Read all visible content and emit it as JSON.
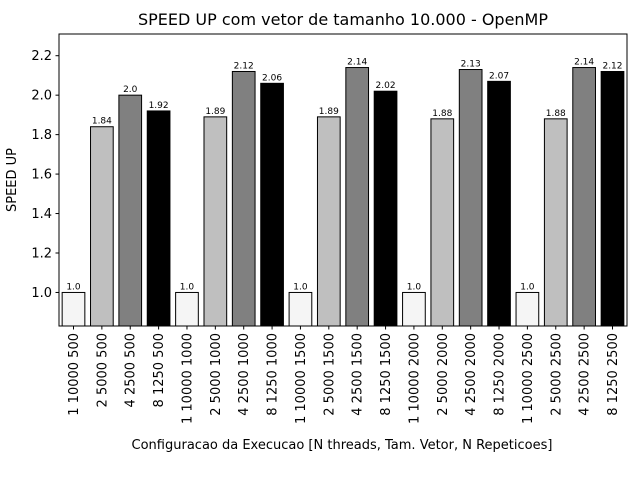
{
  "chart_data": {
    "type": "bar",
    "title": "SPEED UP com vetor de tamanho 10.000 - OpenMP",
    "xlabel": "Configuracao da Execucao [N threads, Tam. Vetor, N Repeticoes]",
    "ylabel": "SPEED UP",
    "ylim": [
      0.83,
      2.31
    ],
    "yticks": [
      "1.0",
      "1.2",
      "1.4",
      "1.6",
      "1.8",
      "2.0",
      "2.2"
    ],
    "grid": false,
    "legend": "none",
    "categories": [
      "1 10000 500",
      "2 5000 500",
      "4 2500 500",
      "8 1250 500",
      "1 10000 1000",
      "2 5000 1000",
      "4 2500 1000",
      "8 1250 1000",
      "1 10000 1500",
      "2 5000 1500",
      "4 2500 1500",
      "8 1250 1500",
      "1 10000 2000",
      "2 5000 2000",
      "4 2500 2000",
      "8 1250 2000",
      "1 10000 2500",
      "2 5000 2500",
      "4 2500 2500",
      "8 1250 2500"
    ],
    "values": [
      1.0,
      1.84,
      2.0,
      1.92,
      1.0,
      1.89,
      2.12,
      2.06,
      1.0,
      1.89,
      2.14,
      2.02,
      1.0,
      1.88,
      2.13,
      2.07,
      1.0,
      1.88,
      2.14,
      2.12
    ],
    "labels": [
      "1.0",
      "1.84",
      "2.0",
      "1.92",
      "1.0",
      "1.89",
      "2.12",
      "2.06",
      "1.0",
      "1.89",
      "2.14",
      "2.02",
      "1.0",
      "1.88",
      "2.13",
      "2.07",
      "1.0",
      "1.88",
      "2.14",
      "2.12"
    ],
    "colors": [
      "#f5f5f5",
      "#bfbfbf",
      "#808080",
      "#000000"
    ]
  }
}
